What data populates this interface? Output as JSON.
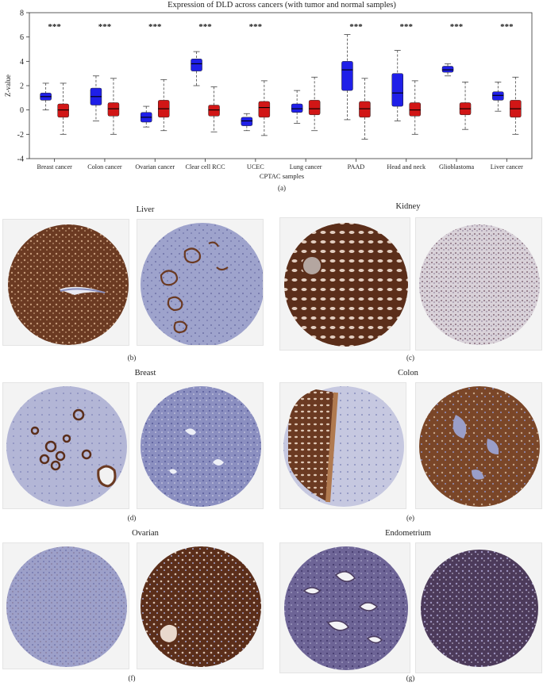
{
  "chart_data": {
    "type": "box",
    "title": "Expression of DLD across cancers (with tumor and normal samples)",
    "xlabel": "CPTAC samples",
    "ylabel": "Z-value",
    "ylim": [
      -4,
      8
    ],
    "yticks": [
      -4,
      -2,
      0,
      2,
      4,
      6,
      8
    ],
    "grid": false,
    "series_colors": [
      "#1f1fe8",
      "#d11616"
    ],
    "significance_mark": "***",
    "groups": [
      {
        "category": "Breast cancer",
        "sig": "***",
        "boxes": [
          {
            "whislo": 0.0,
            "q1": 0.8,
            "med": 1.1,
            "q3": 1.4,
            "whishi": 2.2
          },
          {
            "whislo": -2.0,
            "q1": -0.6,
            "med": 0.0,
            "q3": 0.5,
            "whishi": 2.2
          }
        ]
      },
      {
        "category": "Colon cancer",
        "sig": "***",
        "boxes": [
          {
            "whislo": -0.9,
            "q1": 0.4,
            "med": 1.1,
            "q3": 1.8,
            "whishi": 2.8
          },
          {
            "whislo": -2.0,
            "q1": -0.5,
            "med": 0.1,
            "q3": 0.6,
            "whishi": 2.6
          }
        ]
      },
      {
        "category": "Ovarian cancer",
        "sig": "***",
        "boxes": [
          {
            "whislo": -1.4,
            "q1": -1.0,
            "med": -0.6,
            "q3": -0.2,
            "whishi": 0.3
          },
          {
            "whislo": -1.7,
            "q1": -0.6,
            "med": 0.1,
            "q3": 0.8,
            "whishi": 2.5
          }
        ]
      },
      {
        "category": "Clear cell RCC",
        "sig": "***",
        "boxes": [
          {
            "whislo": 2.0,
            "q1": 3.2,
            "med": 3.8,
            "q3": 4.2,
            "whishi": 4.8
          },
          {
            "whislo": -1.8,
            "q1": -0.5,
            "med": 0.0,
            "q3": 0.4,
            "whishi": 1.9
          }
        ]
      },
      {
        "category": "UCEC",
        "sig": "***",
        "boxes": [
          {
            "whislo": -1.7,
            "q1": -1.3,
            "med": -0.9,
            "q3": -0.6,
            "whishi": -0.3
          },
          {
            "whislo": -2.1,
            "q1": -0.6,
            "med": 0.2,
            "q3": 0.7,
            "whishi": 2.4
          }
        ]
      },
      {
        "category": "Lung cancer",
        "sig": "",
        "boxes": [
          {
            "whislo": -1.1,
            "q1": -0.2,
            "med": 0.1,
            "q3": 0.5,
            "whishi": 1.6
          },
          {
            "whislo": -1.7,
            "q1": -0.4,
            "med": 0.1,
            "q3": 0.8,
            "whishi": 2.7
          }
        ]
      },
      {
        "category": "PAAD",
        "sig": "***",
        "boxes": [
          {
            "whislo": -0.8,
            "q1": 1.6,
            "med": 3.3,
            "q3": 4.0,
            "whishi": 6.2
          },
          {
            "whislo": -2.4,
            "q1": -0.6,
            "med": 0.1,
            "q3": 0.7,
            "whishi": 2.6
          }
        ]
      },
      {
        "category": "Head and neck",
        "sig": "***",
        "boxes": [
          {
            "whislo": -0.9,
            "q1": 0.3,
            "med": 1.4,
            "q3": 3.0,
            "whishi": 4.9
          },
          {
            "whislo": -2.0,
            "q1": -0.5,
            "med": 0.0,
            "q3": 0.6,
            "whishi": 2.4
          }
        ]
      },
      {
        "category": "Glioblastoma",
        "sig": "***",
        "boxes": [
          {
            "whislo": 2.8,
            "q1": 3.1,
            "med": 3.3,
            "q3": 3.6,
            "whishi": 3.8
          },
          {
            "whislo": -1.6,
            "q1": -0.4,
            "med": 0.1,
            "q3": 0.6,
            "whishi": 2.3
          }
        ]
      },
      {
        "category": "Liver cancer",
        "sig": "***",
        "boxes": [
          {
            "whislo": -0.1,
            "q1": 0.8,
            "med": 1.2,
            "q3": 1.5,
            "whishi": 2.3
          },
          {
            "whislo": -2.0,
            "q1": -0.6,
            "med": 0.1,
            "q3": 0.8,
            "whishi": 2.7
          }
        ]
      }
    ]
  },
  "labels": {
    "a": "(a)",
    "b": "(b)",
    "c": "(c)",
    "d": "(d)",
    "e": "(e)",
    "f": "(f)",
    "g": "(g)"
  },
  "tissues": {
    "liver": "Liver",
    "kidney": "Kidney",
    "breast": "Breast",
    "colon": "Colon",
    "ovarian": "Ovarian",
    "endometrium": "Endometrium"
  },
  "stain_colors": {
    "strong": "#6b3a22",
    "medium": "#8a6a55",
    "weak": "#8a8fbe",
    "light": "#a9acd0",
    "lumen": "#f4f4f4"
  }
}
